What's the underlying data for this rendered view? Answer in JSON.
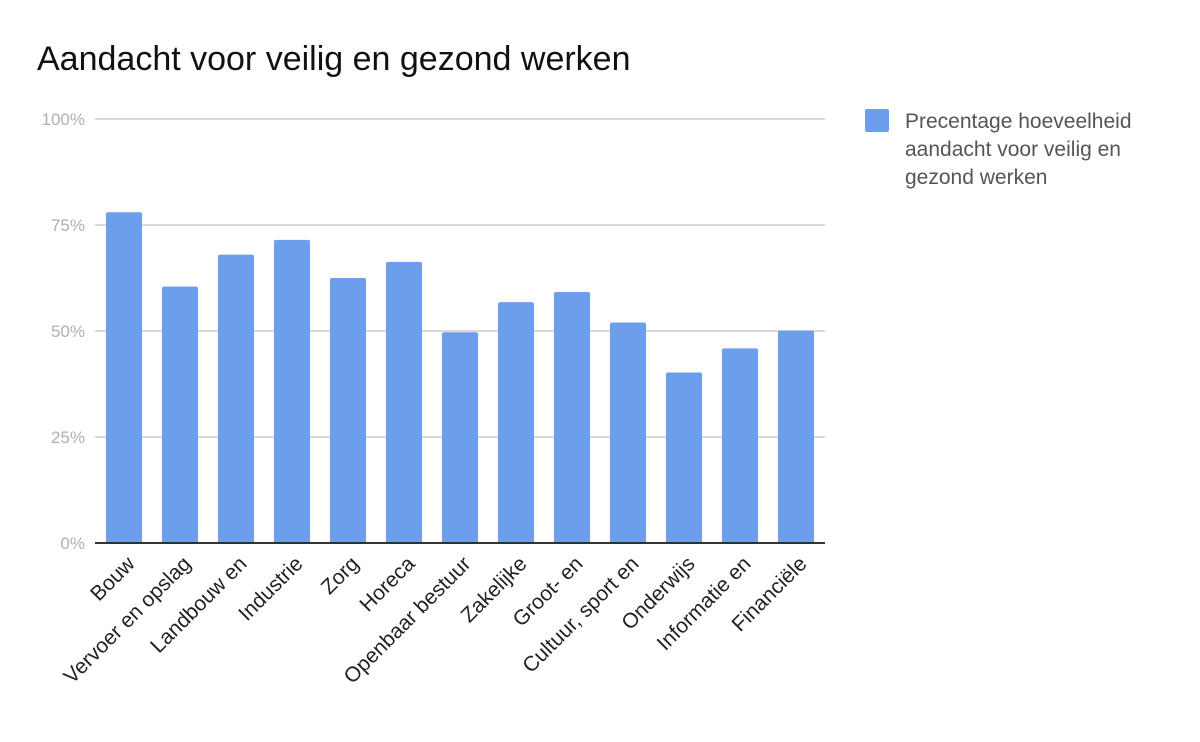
{
  "chart_data": {
    "type": "bar",
    "title": "Aandacht voor veilig en gezond werken",
    "xlabel": "",
    "ylabel": "",
    "ylim": [
      0,
      1
    ],
    "yticks": [
      {
        "value": 0,
        "label": "0%"
      },
      {
        "value": 0.25,
        "label": "25%"
      },
      {
        "value": 0.5,
        "label": "50%"
      },
      {
        "value": 0.75,
        "label": "75%"
      },
      {
        "value": 1,
        "label": "100%"
      }
    ],
    "grid": true,
    "legend_position": "right",
    "categories": [
      "Bouw",
      "Vervoer en opslag",
      "Landbouw en",
      "Industrie",
      "Zorg",
      "Horeca",
      "Openbaar bestuur",
      "Zakelijke",
      "Groot- en",
      "Cultuur, sport en",
      "Onderwijs",
      "Informatie en",
      "Financiële"
    ],
    "series": [
      {
        "name": "Precentage hoeveelheid aandacht voor veilig en gezond werken",
        "name_lines": [
          "Precentage hoeveelheid",
          "aandacht voor veilig en",
          "gezond werken"
        ],
        "color": "#6d9eeb",
        "values": [
          0.78,
          0.605,
          0.68,
          0.715,
          0.625,
          0.663,
          0.497,
          0.568,
          0.592,
          0.52,
          0.402,
          0.459,
          0.501
        ]
      }
    ],
    "colors": {
      "axis": "#333333",
      "grid": "#cccccc"
    }
  }
}
